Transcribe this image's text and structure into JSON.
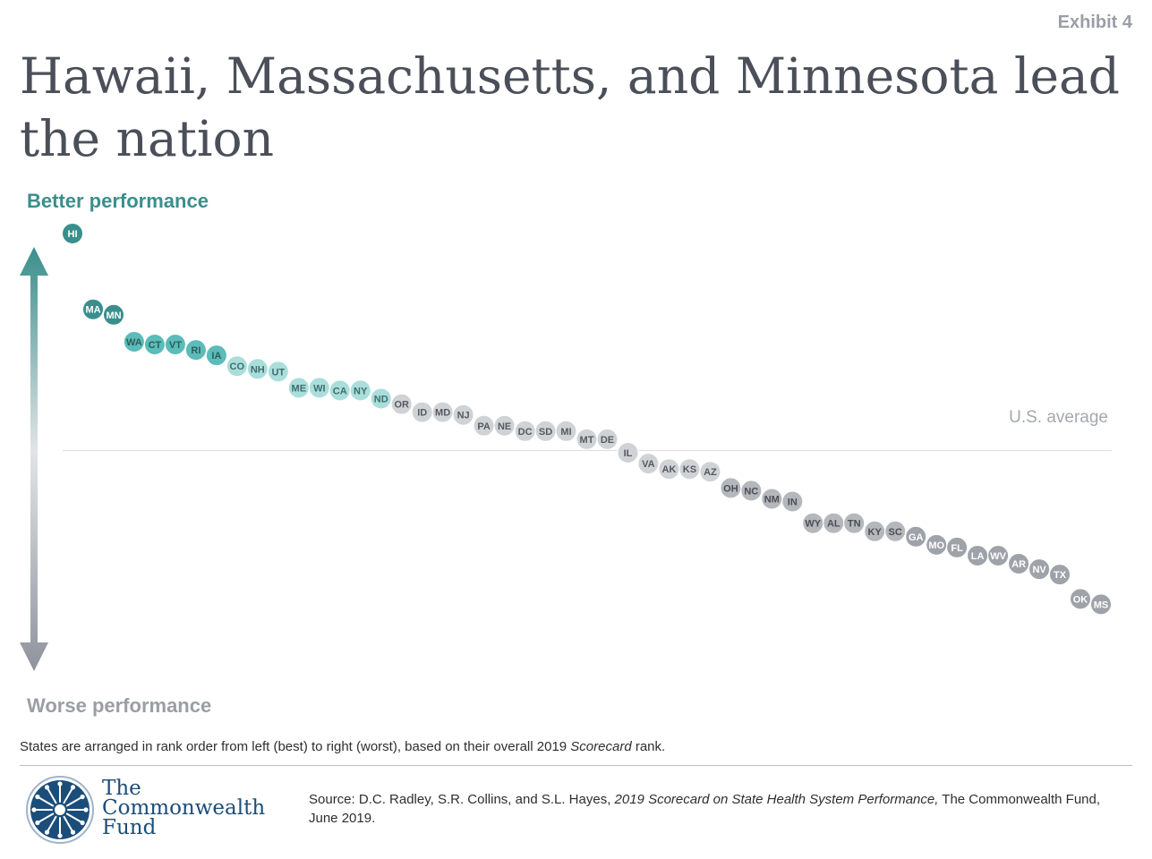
{
  "header": {
    "exhibit": "Exhibit 4",
    "title": "Hawaii, Massachusetts, and Minnesota lead the nation"
  },
  "axis": {
    "top_label": "Better performance",
    "bottom_label": "Worse performance",
    "average_label": "U.S. average"
  },
  "footer": {
    "note_prefix": "States are arranged in rank order from left (best) to right (worst), based on their overall 2019 ",
    "note_italic": "Scorecard",
    "note_suffix": " rank.",
    "source_prefix": "Source: D.C. Radley, S.R. Collins, and S.L. Hayes, ",
    "source_italic": "2019 Scorecard on State Health System Performance,",
    "source_suffix": " The Commonwealth Fund, June 2019.",
    "logo_line1": "The",
    "logo_line2": "Commonwealth",
    "logo_line3": "Fund"
  },
  "colors": {
    "top_tier": "#3a8f8c",
    "second_tier": "#5bbcb9",
    "third_tier": "#a9dedb",
    "fourth_tier": "#d0d3d6",
    "fifth_tier": "#b4b7bc",
    "bottom_tier": "#9ea2a9",
    "logo": "#1b4d7a"
  },
  "chart_data": {
    "type": "scatter",
    "x_meaning": "rank order",
    "y_meaning": "overall performance (above line = better than U.S. average)",
    "average_y": 0,
    "ylim": [
      -64,
      82
    ],
    "points": [
      {
        "state": "HI",
        "rank": 1,
        "y": 80,
        "tier": 1
      },
      {
        "state": "MA",
        "rank": 2,
        "y": 52,
        "tier": 1
      },
      {
        "state": "MN",
        "rank": 3,
        "y": 50,
        "tier": 1
      },
      {
        "state": "WA",
        "rank": 4,
        "y": 40,
        "tier": 2
      },
      {
        "state": "CT",
        "rank": 5,
        "y": 39,
        "tier": 2
      },
      {
        "state": "VT",
        "rank": 6,
        "y": 39,
        "tier": 2
      },
      {
        "state": "RI",
        "rank": 7,
        "y": 37,
        "tier": 2
      },
      {
        "state": "IA",
        "rank": 8,
        "y": 35,
        "tier": 2
      },
      {
        "state": "CO",
        "rank": 9,
        "y": 31,
        "tier": 3
      },
      {
        "state": "NH",
        "rank": 10,
        "y": 30,
        "tier": 3
      },
      {
        "state": "UT",
        "rank": 11,
        "y": 29,
        "tier": 3
      },
      {
        "state": "ME",
        "rank": 12,
        "y": 23,
        "tier": 3
      },
      {
        "state": "WI",
        "rank": 13,
        "y": 23,
        "tier": 3
      },
      {
        "state": "CA",
        "rank": 14,
        "y": 22,
        "tier": 3
      },
      {
        "state": "NY",
        "rank": 15,
        "y": 22,
        "tier": 3
      },
      {
        "state": "ND",
        "rank": 16,
        "y": 19,
        "tier": 3
      },
      {
        "state": "OR",
        "rank": 17,
        "y": 17,
        "tier": 4
      },
      {
        "state": "ID",
        "rank": 18,
        "y": 14,
        "tier": 4
      },
      {
        "state": "MD",
        "rank": 19,
        "y": 14,
        "tier": 4
      },
      {
        "state": "NJ",
        "rank": 20,
        "y": 13,
        "tier": 4
      },
      {
        "state": "PA",
        "rank": 21,
        "y": 9,
        "tier": 4
      },
      {
        "state": "NE",
        "rank": 22,
        "y": 9,
        "tier": 4
      },
      {
        "state": "DC",
        "rank": 23,
        "y": 7,
        "tier": 4
      },
      {
        "state": "SD",
        "rank": 24,
        "y": 7,
        "tier": 4
      },
      {
        "state": "MI",
        "rank": 25,
        "y": 7,
        "tier": 4
      },
      {
        "state": "MT",
        "rank": 26,
        "y": 4,
        "tier": 4
      },
      {
        "state": "DE",
        "rank": 27,
        "y": 4,
        "tier": 4
      },
      {
        "state": "IL",
        "rank": 28,
        "y": -1,
        "tier": 5
      },
      {
        "state": "VA",
        "rank": 29,
        "y": -5,
        "tier": 5
      },
      {
        "state": "AK",
        "rank": 30,
        "y": -7,
        "tier": 5
      },
      {
        "state": "KS",
        "rank": 31,
        "y": -7,
        "tier": 5
      },
      {
        "state": "AZ",
        "rank": 32,
        "y": -8,
        "tier": 5
      },
      {
        "state": "OH",
        "rank": 33,
        "y": -14,
        "tier": 6
      },
      {
        "state": "NC",
        "rank": 34,
        "y": -15,
        "tier": 6
      },
      {
        "state": "NM",
        "rank": 35,
        "y": -18,
        "tier": 6
      },
      {
        "state": "IN",
        "rank": 36,
        "y": -19,
        "tier": 6
      },
      {
        "state": "WY",
        "rank": 37,
        "y": -27,
        "tier": 6
      },
      {
        "state": "AL",
        "rank": 38,
        "y": -27,
        "tier": 6
      },
      {
        "state": "TN",
        "rank": 39,
        "y": -27,
        "tier": 6
      },
      {
        "state": "KY",
        "rank": 40,
        "y": -30,
        "tier": 6
      },
      {
        "state": "SC",
        "rank": 41,
        "y": -30,
        "tier": 6
      },
      {
        "state": "GA",
        "rank": 42,
        "y": -32,
        "tier": 7
      },
      {
        "state": "MO",
        "rank": 43,
        "y": -35,
        "tier": 7
      },
      {
        "state": "FL",
        "rank": 44,
        "y": -36,
        "tier": 7
      },
      {
        "state": "LA",
        "rank": 45,
        "y": -39,
        "tier": 7
      },
      {
        "state": "WV",
        "rank": 46,
        "y": -39,
        "tier": 7
      },
      {
        "state": "AR",
        "rank": 47,
        "y": -42,
        "tier": 7
      },
      {
        "state": "NV",
        "rank": 48,
        "y": -44,
        "tier": 7
      },
      {
        "state": "TX",
        "rank": 49,
        "y": -46,
        "tier": 7
      },
      {
        "state": "OK",
        "rank": 50,
        "y": -55,
        "tier": 7
      },
      {
        "state": "MS",
        "rank": 51,
        "y": -57,
        "tier": 7
      }
    ]
  }
}
